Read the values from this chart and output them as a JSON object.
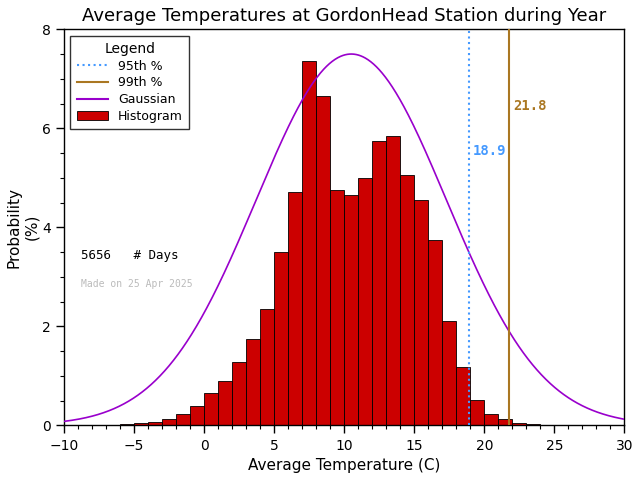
{
  "title": "Average Temperatures at GordonHead Station during Year",
  "xlabel": "Average Temperature (C)",
  "ylabel": "Probability\n(%)",
  "xlim": [
    -10,
    30
  ],
  "ylim": [
    0,
    8
  ],
  "xticks": [
    -10,
    -5,
    0,
    5,
    10,
    15,
    20,
    25,
    30
  ],
  "yticks": [
    0,
    2,
    4,
    6,
    8
  ],
  "hist_bins": [
    -10,
    -9,
    -8,
    -7,
    -6,
    -5,
    -4,
    -3,
    -2,
    -1,
    0,
    1,
    2,
    3,
    4,
    5,
    6,
    7,
    8,
    9,
    10,
    11,
    12,
    13,
    14,
    15,
    16,
    17,
    18,
    19,
    20,
    21,
    22,
    23,
    24,
    25,
    26,
    27,
    28,
    29,
    30
  ],
  "hist_values": [
    0.0,
    0.0,
    0.0,
    0.0,
    0.02,
    0.04,
    0.07,
    0.12,
    0.22,
    0.38,
    0.65,
    0.9,
    1.28,
    1.75,
    2.35,
    3.5,
    4.72,
    7.35,
    6.65,
    4.75,
    4.65,
    5.0,
    5.75,
    5.85,
    5.05,
    4.55,
    3.75,
    2.1,
    1.18,
    0.52,
    0.22,
    0.12,
    0.05,
    0.02,
    0.01,
    0.0,
    0.0,
    0.0,
    0.0,
    0.0
  ],
  "gauss_mean": 10.5,
  "gauss_std": 6.8,
  "gauss_peak": 7.5,
  "percentile_95": 18.9,
  "percentile_99": 21.8,
  "n_days": 5656,
  "date_label": "Made on 25 Apr 2025",
  "bar_color": "#cc0000",
  "bar_edge_color": "#000000",
  "gauss_color": "#9900cc",
  "p95_color": "#4499ff",
  "p99_color": "#aa7722",
  "title_fontsize": 13,
  "axis_fontsize": 11,
  "tick_fontsize": 10
}
